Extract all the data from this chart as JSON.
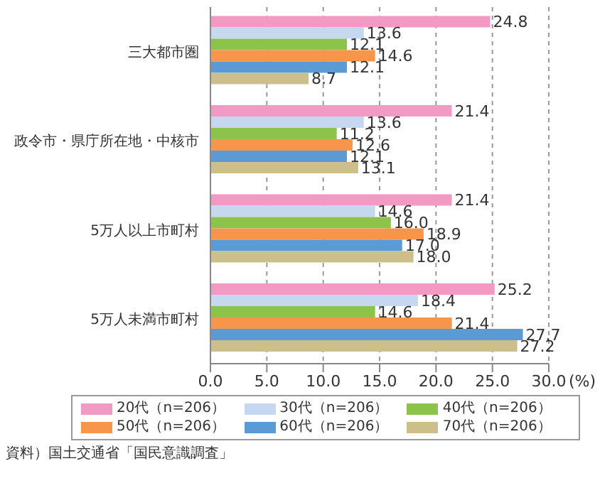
{
  "chart_data": {
    "type": "bar",
    "orientation": "horizontal",
    "categories": [
      "三大都市圏",
      "政令市・県庁所在地・中核市",
      "5万人以上市町村",
      "5万人未満市町村"
    ],
    "series": [
      {
        "name": "20代（n=206）",
        "color": "#f39ac4",
        "values": [
          24.8,
          21.4,
          21.4,
          25.2
        ],
        "value_labels": [
          "24.8",
          "21.4",
          "21.4",
          "25.2"
        ]
      },
      {
        "name": "30代（n=206）",
        "color": "#c6d8f0",
        "values": [
          13.6,
          13.6,
          14.6,
          18.4
        ],
        "value_labels": [
          "13.6",
          "13.6",
          "14.6",
          "18.4"
        ]
      },
      {
        "name": "40代（n=206）",
        "color": "#8cc34a",
        "values": [
          12.1,
          11.2,
          16.0,
          14.6
        ],
        "value_labels": [
          "12.1",
          "11.2",
          "16.0",
          "14.6"
        ]
      },
      {
        "name": "50代（n=206）",
        "color": "#f7954a",
        "values": [
          14.6,
          12.6,
          18.9,
          21.4
        ],
        "value_labels": [
          "14.6",
          "12.6",
          "18.9",
          "21.4"
        ]
      },
      {
        "name": "60代（n=206）",
        "color": "#5b9bd5",
        "values": [
          12.1,
          12.1,
          17.0,
          27.7
        ],
        "value_labels": [
          "12.1",
          "12.1",
          "17.0",
          "27.7"
        ]
      },
      {
        "name": "70代（n=206）",
        "color": "#cdbf8a",
        "values": [
          8.7,
          13.1,
          18.0,
          27.2
        ],
        "value_labels": [
          "8.7",
          "13.1",
          "18.0",
          "27.2"
        ]
      }
    ],
    "xlabel": "(%)",
    "xlim": [
      0,
      30
    ],
    "xticks": [
      {
        "value": 0,
        "label": "0.0"
      },
      {
        "value": 5,
        "label": "5.0"
      },
      {
        "value": 10,
        "label": "10.0"
      },
      {
        "value": 15,
        "label": "15.0"
      },
      {
        "value": 20,
        "label": "20.0"
      },
      {
        "value": 25,
        "label": "25.0"
      },
      {
        "value": 30,
        "label": "30.0"
      }
    ],
    "grid": "x",
    "legend": "bottom",
    "annotations": [
      "資料）国土交通省「国民意識調査」"
    ]
  }
}
